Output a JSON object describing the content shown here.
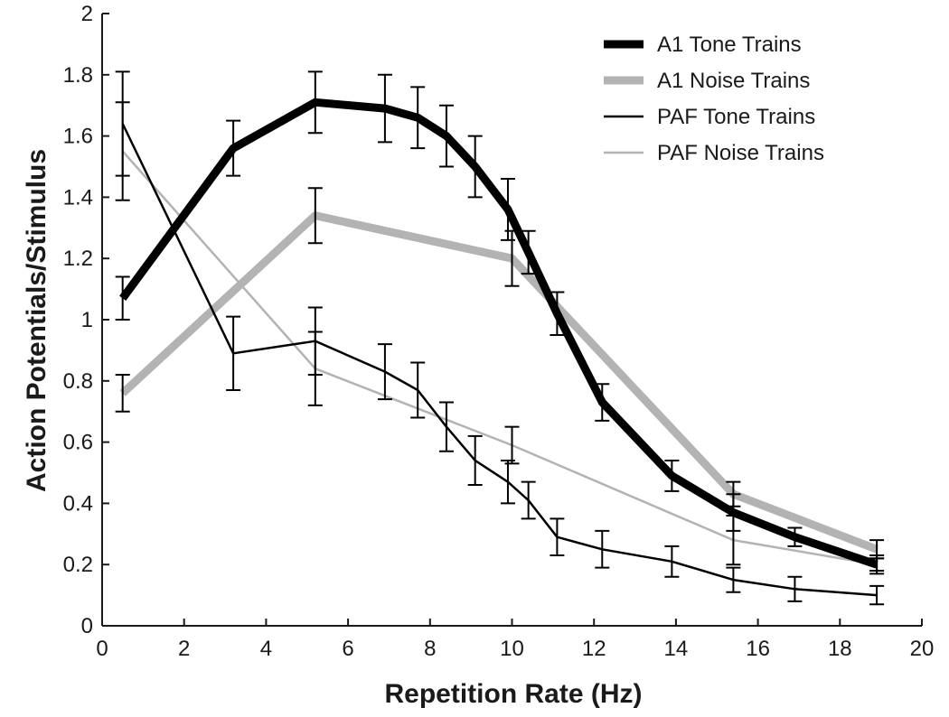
{
  "chart_data": {
    "type": "line",
    "title": "",
    "xlabel": "Repetition Rate (Hz)",
    "ylabel": "Action Potentials/Stimulus",
    "xlim": [
      0,
      20
    ],
    "ylim": [
      0,
      2
    ],
    "xticks": [
      0,
      2,
      4,
      6,
      8,
      10,
      12,
      14,
      16,
      18,
      20
    ],
    "xtick_labels": [
      "0",
      "2",
      "4",
      "6",
      "8",
      "10",
      "12",
      "14",
      "16",
      "18",
      "20"
    ],
    "yticks": [
      0,
      0.2,
      0.4,
      0.6,
      0.8,
      1,
      1.2,
      1.4,
      1.6,
      1.8,
      2
    ],
    "ytick_labels": [
      "0",
      "0.2",
      "0.4",
      "0.6",
      "0.8",
      "1",
      "1.2",
      "1.4",
      "1.6",
      "1.8",
      "2"
    ],
    "grid": false,
    "legend_position": "top-right",
    "series": [
      {
        "name": "A1 Tone Trains",
        "color": "#000000",
        "style": "thick",
        "x": [
          0.5,
          3.2,
          5.2,
          6.9,
          7.7,
          8.4,
          9.1,
          9.9,
          10.4,
          11.1,
          12.2,
          13.9,
          15.4,
          16.9,
          18.9
        ],
        "y": [
          1.07,
          1.56,
          1.71,
          1.69,
          1.66,
          1.6,
          1.5,
          1.36,
          1.22,
          1.02,
          0.73,
          0.49,
          0.37,
          0.29,
          0.2
        ],
        "err": [
          0.07,
          0.09,
          0.1,
          0.11,
          0.1,
          0.1,
          0.1,
          0.1,
          0.07,
          0.07,
          0.06,
          0.05,
          0.06,
          0.03,
          0.02
        ]
      },
      {
        "name": "A1 Noise Trains",
        "color": "#b3b3b3",
        "style": "thick",
        "x": [
          0.5,
          5.2,
          10.0,
          15.4,
          18.9
        ],
        "y": [
          0.76,
          1.34,
          1.2,
          0.43,
          0.25
        ],
        "err": [
          0.06,
          0.09,
          0.09,
          0.04,
          0.03
        ]
      },
      {
        "name": "PAF Tone Trains",
        "color": "#000000",
        "style": "thin",
        "x": [
          0.5,
          3.2,
          5.2,
          6.9,
          7.7,
          8.4,
          9.1,
          9.9,
          10.4,
          11.1,
          12.2,
          13.9,
          15.4,
          16.9,
          18.9
        ],
        "y": [
          1.64,
          0.89,
          0.93,
          0.83,
          0.77,
          0.65,
          0.54,
          0.47,
          0.41,
          0.29,
          0.25,
          0.21,
          0.15,
          0.12,
          0.1
        ],
        "err": [
          0.17,
          0.12,
          0.11,
          0.09,
          0.09,
          0.08,
          0.08,
          0.07,
          0.06,
          0.06,
          0.06,
          0.05,
          0.04,
          0.04,
          0.03
        ]
      },
      {
        "name": "PAF Noise Trains",
        "color": "#b3b3b3",
        "style": "thin",
        "x": [
          0.5,
          5.2,
          10.0,
          15.4,
          18.9
        ],
        "y": [
          1.55,
          0.84,
          0.59,
          0.28,
          0.2
        ],
        "err": [
          0.16,
          0.12,
          0.06,
          0.08,
          0.03
        ]
      }
    ]
  }
}
